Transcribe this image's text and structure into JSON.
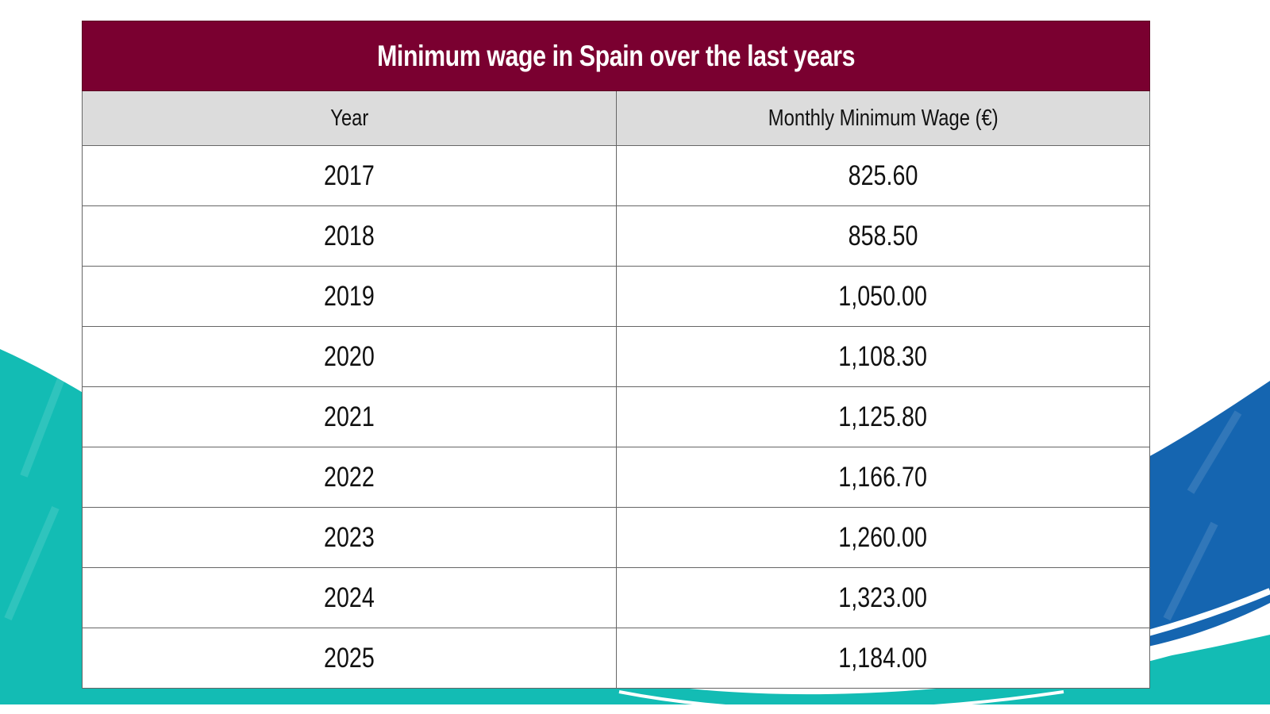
{
  "chart_data": {
    "type": "table",
    "title": "Minimum wage in Spain over the last years",
    "columns": [
      "Year",
      "Monthly Minimum Wage (€)"
    ],
    "rows": [
      [
        "2017",
        "825.60"
      ],
      [
        "2018",
        "858.50"
      ],
      [
        "2019",
        "1,050.00"
      ],
      [
        "2020",
        "1,108.30"
      ],
      [
        "2021",
        "1,125.80"
      ],
      [
        "2022",
        "1,166.70"
      ],
      [
        "2023",
        "1,260.00"
      ],
      [
        "2024",
        "1,323.00"
      ],
      [
        "2025",
        "1,184.00"
      ]
    ]
  },
  "colors": {
    "title_bg": "#7a0030",
    "header_bg": "#dcdcdc",
    "teal": "#13bcb4",
    "blue": "#1565b0"
  }
}
